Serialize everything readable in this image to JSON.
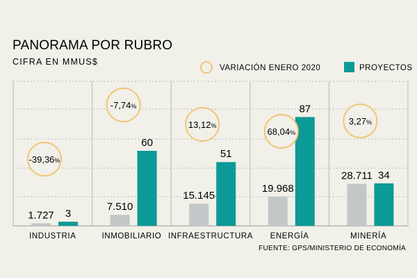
{
  "header": {
    "title": "PANORAMA POR RUBRO",
    "subtitle": "CIFRA EN MMUS$"
  },
  "legend": {
    "variation_label": "VARIACIÓN ENERO 2020",
    "projects_label": "PROYECTOS"
  },
  "source": "FUENTE: GPS/MINISTERIO DE ECONOMÍA",
  "colors": {
    "background": "#f1f0e9",
    "amount_bar": "#c4c7c8",
    "projects_bar": "#0d9a96",
    "circle": "#f1c575",
    "grid": "#b9b9b5"
  },
  "chart_data": {
    "type": "bar",
    "title": "PANORAMA POR RUBRO",
    "subtitle": "CIFRA EN MMUS$",
    "categories": [
      "INDUSTRIA",
      "INMOBILIARIO",
      "INFRAESTRUCTURA",
      "ENERGÍA",
      "MINERÍA"
    ],
    "amounts": {
      "values": [
        1727,
        7510,
        15145,
        19968,
        28711
      ],
      "labels": [
        "1.727",
        "7.510",
        "15.145",
        "19.968",
        "28.711"
      ]
    },
    "series": [
      {
        "name": "PROYECTOS",
        "values": [
          3,
          60,
          51,
          87,
          34
        ],
        "labels": [
          "3",
          "60",
          "51",
          "87",
          "34"
        ]
      }
    ],
    "variation": {
      "name": "VARIACIÓN ENERO 2020",
      "values": [
        -39.36,
        -7.74,
        13.12,
        68.04,
        3.27
      ],
      "labels": [
        "-39,36",
        "-7,74",
        "13,12",
        "68,04",
        "3,27"
      ],
      "unit": "%"
    },
    "grid": true,
    "legend_position": "top-right"
  }
}
